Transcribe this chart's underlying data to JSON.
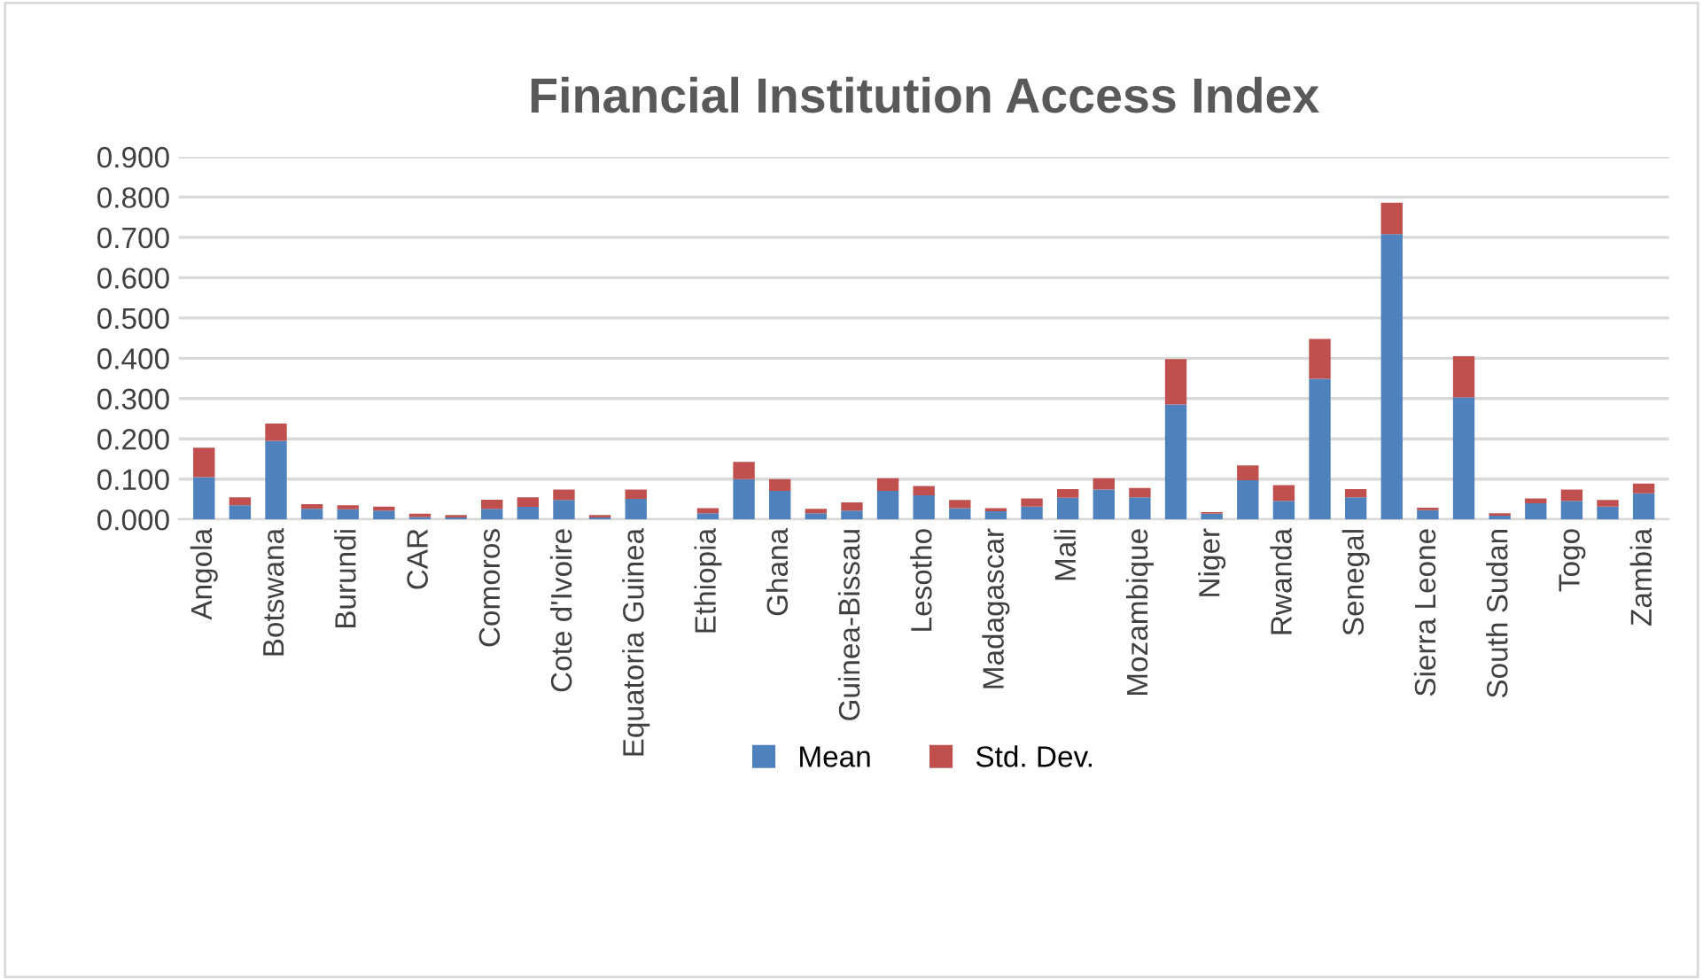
{
  "chart_data": {
    "type": "bar",
    "title": "Financial Institution Access Index",
    "stacked": true,
    "categories": [
      "Angola",
      null,
      "Botswana",
      null,
      "Burundi",
      null,
      "CAR",
      null,
      "Comoros",
      null,
      "Cote d'Ivoire",
      null,
      "Equatoria Guinea",
      null,
      "Ethiopia",
      null,
      "Ghana",
      null,
      "Guinea-Bissau",
      null,
      "Lesotho",
      null,
      "Madagascar",
      null,
      "Mali",
      null,
      "Mozambique",
      null,
      "Niger",
      null,
      "Rwanda",
      null,
      "Senegal",
      null,
      "Sierra Leone",
      null,
      "South Sudan",
      null,
      "Togo",
      null,
      "Zambia"
    ],
    "series": [
      {
        "name": "Mean",
        "color": "#4f81bd",
        "values": [
          0.105,
          0.035,
          0.195,
          0.026,
          0.025,
          0.022,
          0.006,
          0.005,
          0.026,
          0.031,
          0.048,
          0.005,
          0.051,
          0,
          0.015,
          0.1,
          0.071,
          0.015,
          0.022,
          0.071,
          0.06,
          0.028,
          0.02,
          0.032,
          0.054,
          0.074,
          0.055,
          0.285,
          0.014,
          0.097,
          0.046,
          0.349,
          0.055,
          0.708,
          0.023,
          0.303,
          0.009,
          0.04,
          0.046,
          0.032,
          0.065
        ]
      },
      {
        "name": "Std. Dev.",
        "color": "#c0504d",
        "values": [
          0.073,
          0.02,
          0.043,
          0.012,
          0.01,
          0.01,
          0.008,
          0.006,
          0.023,
          0.024,
          0.026,
          0.006,
          0.023,
          0,
          0.013,
          0.043,
          0.029,
          0.011,
          0.02,
          0.031,
          0.023,
          0.02,
          0.008,
          0.02,
          0.021,
          0.028,
          0.023,
          0.113,
          0.004,
          0.037,
          0.039,
          0.099,
          0.02,
          0.078,
          0.006,
          0.102,
          0.006,
          0.012,
          0.028,
          0.016,
          0.024
        ]
      }
    ],
    "ylim": [
      0,
      0.9
    ],
    "yticks": [
      {
        "value": 0,
        "label": "0.000"
      },
      {
        "value": 0.1,
        "label": "0.100"
      },
      {
        "value": 0.2,
        "label": "0.200"
      },
      {
        "value": 0.3,
        "label": "0.300"
      },
      {
        "value": 0.4,
        "label": "0.400"
      },
      {
        "value": 0.5,
        "label": "0.500"
      },
      {
        "value": 0.6,
        "label": "0.600"
      },
      {
        "value": 0.7,
        "label": "0.700"
      },
      {
        "value": 0.8,
        "label": "0.800"
      },
      {
        "value": 0.9,
        "label": "0.900"
      }
    ],
    "grid": "y",
    "legend": "bottom"
  }
}
